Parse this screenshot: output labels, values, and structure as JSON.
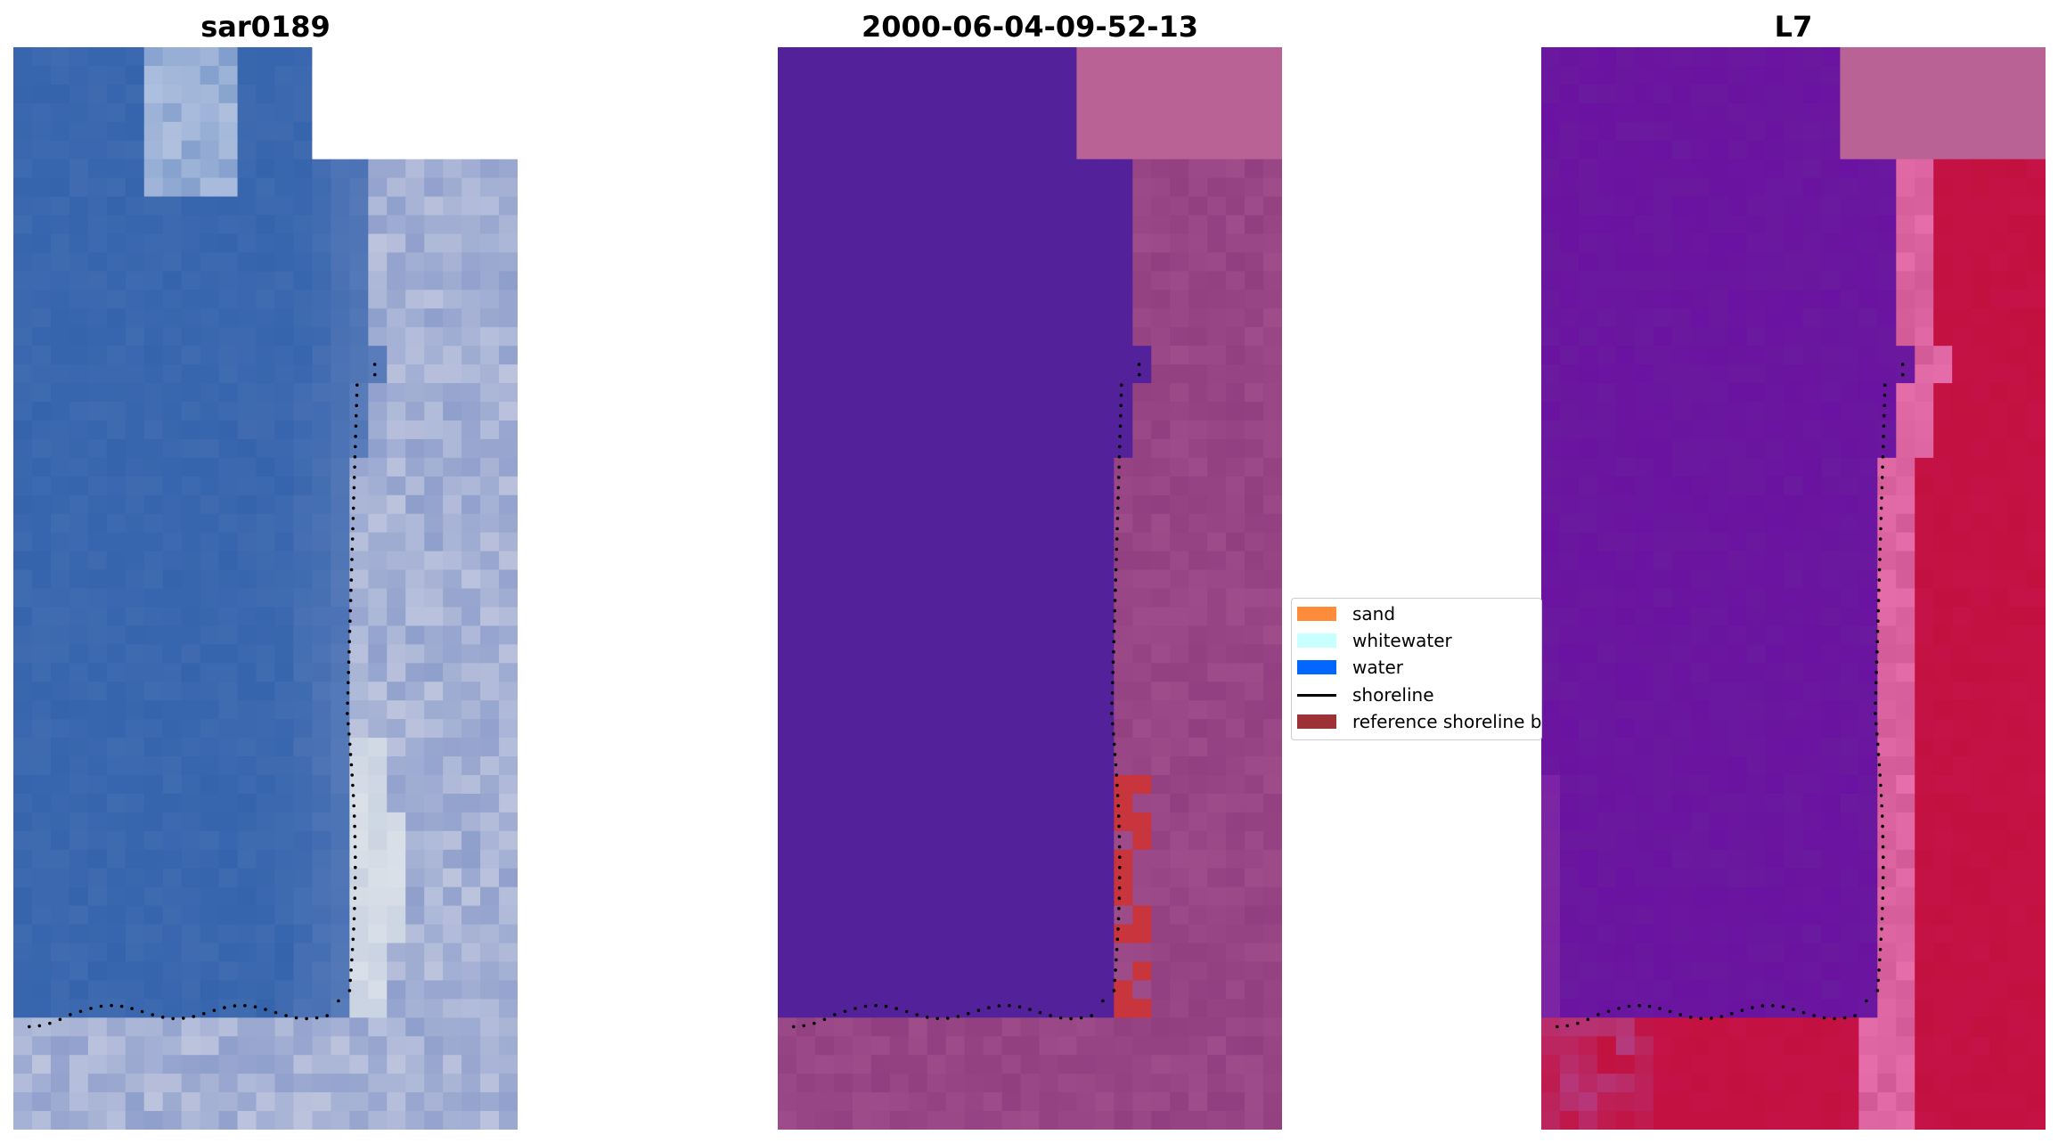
{
  "panels": [
    {
      "id": "rgb",
      "title": "sar0189",
      "style": "rgb"
    },
    {
      "id": "classified",
      "title": "2000-06-04-09-52-13",
      "style": "classified"
    },
    {
      "id": "index",
      "title": "L7",
      "style": "index"
    }
  ],
  "legend": {
    "items": [
      {
        "type": "patch",
        "label": "sand",
        "color": "#ff8c3b"
      },
      {
        "type": "patch",
        "label": "whitewater",
        "color": "#c8ffff"
      },
      {
        "type": "patch",
        "label": "water",
        "color": "#0066ff"
      },
      {
        "type": "line",
        "label": "shoreline",
        "color": "#000000"
      },
      {
        "type": "patch",
        "label": "reference shoreline buffer",
        "color": "#9c3236"
      }
    ]
  },
  "colors": {
    "water_rgb": "#3564ad",
    "land_rgb": "#8f9fcc",
    "water_class": "#53229a",
    "land_class": "#9e4c8a",
    "buffer_class": "#c8353c",
    "water_index": "#6a1a9e",
    "land_index": "#c2113f",
    "nodata": "#b86296",
    "shoreline_marker": "#000000"
  }
}
